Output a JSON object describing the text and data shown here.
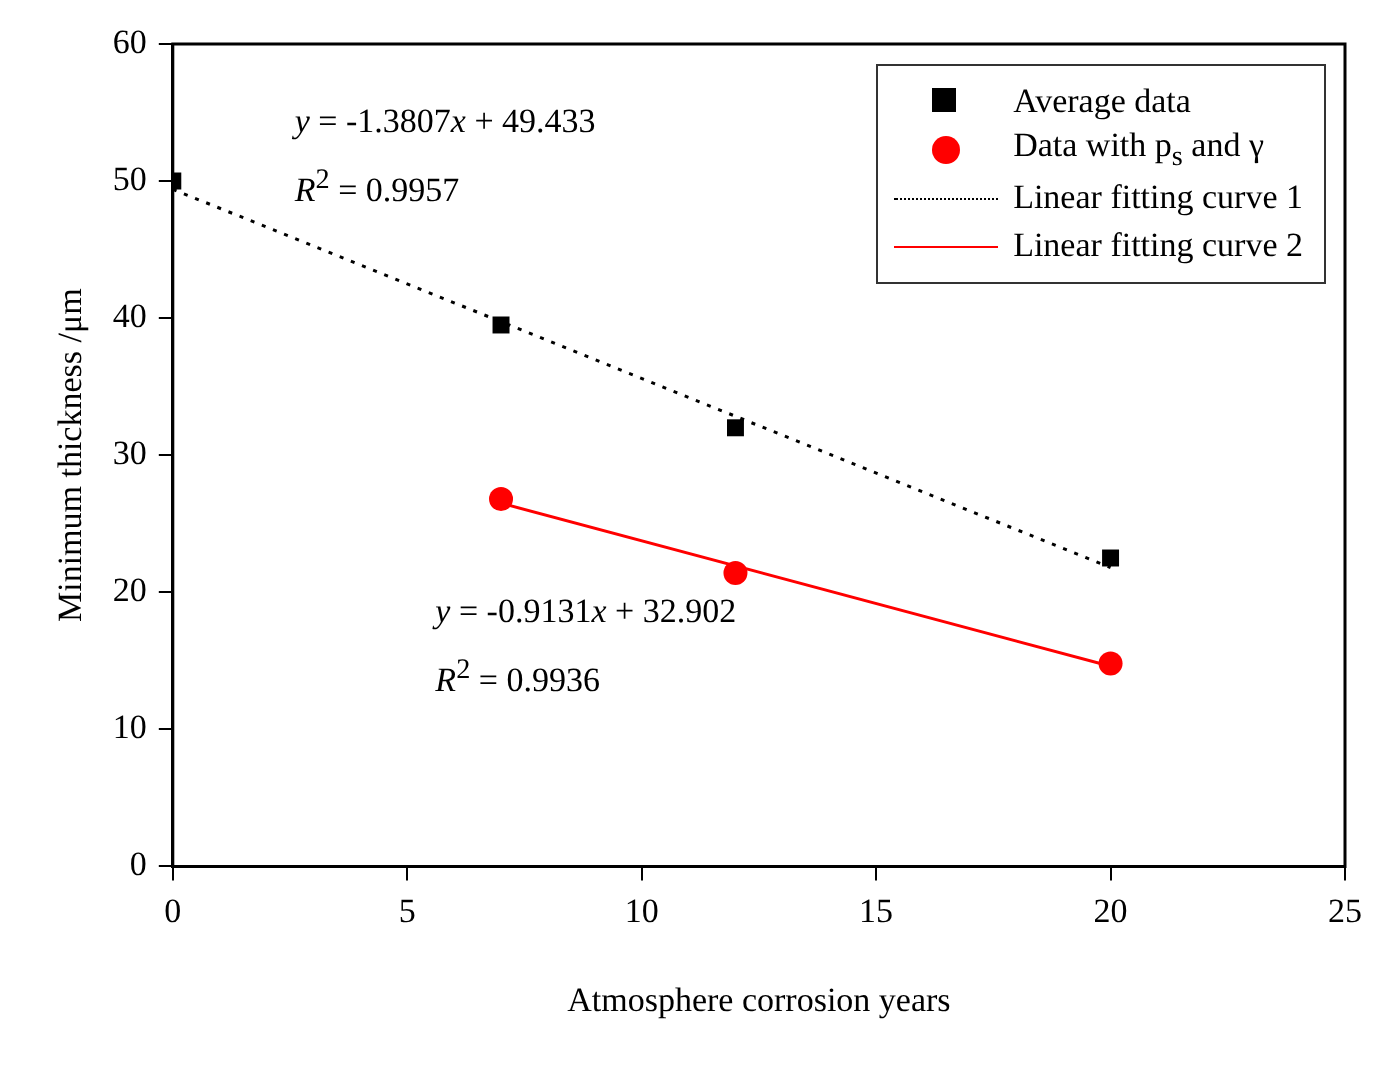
{
  "chart_data": {
    "type": "scatter",
    "xlabel": "Atmosphere corrosion years",
    "ylabel": "Minimum thickness /μm",
    "xlim": [
      0,
      25
    ],
    "xticks": [
      0,
      5,
      10,
      15,
      20,
      25
    ],
    "ylim": [
      0,
      60
    ],
    "yticks": [
      0,
      10,
      20,
      30,
      40,
      50,
      60
    ],
    "grid": false,
    "legend": "top right",
    "series": [
      {
        "name": "Average data",
        "marker": "square",
        "color": "#000000",
        "x": [
          0,
          7,
          12,
          20
        ],
        "values": [
          50,
          39.5,
          32,
          22.5
        ]
      },
      {
        "name": "Data with p$_{s}$ and γ",
        "marker": "circle",
        "color": "#ff0000",
        "x": [
          7,
          12,
          20
        ],
        "values": [
          26.8,
          21.4,
          14.8
        ]
      },
      {
        "name": "Linear fitting curve 1",
        "type": "line",
        "line_style": "dotted",
        "color": "#000000",
        "x": [
          0,
          20
        ],
        "values": [
          49.4,
          21.8
        ]
      },
      {
        "name": "Linear fitting curve 2",
        "type": "line",
        "line_style": "solid",
        "color": "#ff0000",
        "x": [
          7,
          20
        ],
        "values": [
          26.5,
          14.6
        ]
      }
    ],
    "annotations": [
      "y = -1.3807x + 49.433",
      "R$^{2}$ = 0.9957",
      "y = -0.9131x + 32.902",
      "R$^{2}$ = 0.9936"
    ]
  }
}
